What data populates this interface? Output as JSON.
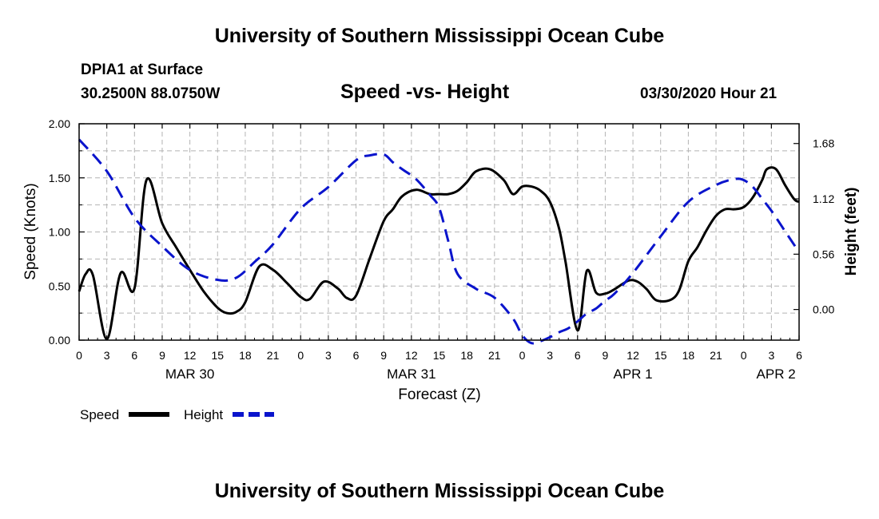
{
  "header": {
    "title": "University of Southern Mississippi Ocean Cube",
    "station": "DPIA1 at Surface",
    "location": "30.2500N 88.0750W",
    "plot_title": "Speed -vs- Height",
    "datetime": "03/30/2020 Hour 21"
  },
  "footer": {
    "title": "University of Southern Mississippi Ocean Cube"
  },
  "legend": {
    "speed_label": "Speed",
    "height_label": "Height"
  },
  "colors": {
    "speed": "#000000",
    "height": "#0a14cc",
    "grid": "#b4b4b4"
  },
  "chart_data": {
    "type": "line",
    "title": "Speed -vs- Height",
    "xlabel": "Forecast (Z)",
    "ylabel_left": "Speed (Knots)",
    "ylabel_right": "Height (feet)",
    "x_range_hours": [
      0,
      78
    ],
    "y_left_range": [
      0,
      2
    ],
    "y_right_range": [
      -0.31,
      1.88
    ],
    "y_left_ticks": [
      "0.00",
      "0.50",
      "1.00",
      "1.50",
      "2.00"
    ],
    "y_left_tick_values": [
      0,
      0.5,
      1.0,
      1.5,
      2.0
    ],
    "y_right_ticks": [
      "0.00",
      "0.56",
      "1.12",
      "1.68"
    ],
    "y_right_tick_values": [
      0,
      0.56,
      1.12,
      1.68
    ],
    "x_tick_labels": [
      "0",
      "3",
      "6",
      "9",
      "12",
      "15",
      "18",
      "21",
      "0",
      "3",
      "6",
      "9",
      "12",
      "15",
      "18",
      "21",
      "0",
      "3",
      "6",
      "9",
      "12",
      "15",
      "18",
      "21",
      "0",
      "3",
      "6"
    ],
    "x_tick_hours": [
      0,
      3,
      6,
      9,
      12,
      15,
      18,
      21,
      24,
      27,
      30,
      33,
      36,
      39,
      42,
      45,
      48,
      51,
      54,
      57,
      60,
      63,
      66,
      69,
      72,
      75,
      78
    ],
    "date_labels": [
      {
        "label": "MAR 30",
        "hour": 12
      },
      {
        "label": "MAR 31",
        "hour": 36
      },
      {
        "label": "APR 1",
        "hour": 60
      },
      {
        "label": "APR 2",
        "hour": 75.5
      }
    ],
    "series": [
      {
        "name": "Speed",
        "axis": "left",
        "style": "solid",
        "x": [
          0,
          0.7,
          1.5,
          3,
          4.5,
          6,
          7.3,
          9,
          10.5,
          12,
          13.5,
          15,
          16,
          17,
          18,
          19.5,
          21,
          22.5,
          24,
          25,
          26.5,
          28,
          29,
          30,
          31.5,
          33,
          34,
          35,
          36.5,
          38,
          39,
          40,
          41,
          42,
          43,
          44.5,
          46,
          47,
          48,
          49,
          50,
          51,
          52,
          52.7,
          54,
          55,
          56,
          57,
          58,
          59.5,
          60.5,
          61.5,
          62.5,
          64,
          65,
          66,
          67,
          68,
          69,
          70,
          71,
          72,
          73,
          74,
          74.5,
          75.5,
          76.5,
          77.5,
          78
        ],
        "values": [
          0.45,
          0.61,
          0.6,
          0.01,
          0.62,
          0.48,
          1.48,
          1.08,
          0.86,
          0.65,
          0.45,
          0.3,
          0.25,
          0.26,
          0.35,
          0.68,
          0.65,
          0.53,
          0.4,
          0.38,
          0.54,
          0.48,
          0.39,
          0.41,
          0.76,
          1.1,
          1.21,
          1.33,
          1.39,
          1.35,
          1.35,
          1.35,
          1.38,
          1.46,
          1.56,
          1.58,
          1.48,
          1.35,
          1.42,
          1.42,
          1.38,
          1.28,
          1.03,
          0.72,
          0.09,
          0.64,
          0.44,
          0.43,
          0.47,
          0.55,
          0.54,
          0.47,
          0.37,
          0.37,
          0.46,
          0.73,
          0.86,
          1.02,
          1.15,
          1.21,
          1.21,
          1.23,
          1.32,
          1.48,
          1.58,
          1.58,
          1.43,
          1.3,
          1.28
        ]
      },
      {
        "name": "Height",
        "axis": "right",
        "style": "dashed",
        "x": [
          0,
          3,
          6,
          9,
          12,
          15,
          17,
          19,
          21,
          24,
          27,
          30,
          31.5,
          33,
          34,
          35,
          36.5,
          38,
          39,
          40,
          41,
          43,
          45,
          47,
          48,
          49,
          50,
          51,
          52,
          53,
          54,
          55,
          56,
          57,
          58,
          60,
          63,
          66,
          69,
          71,
          72,
          73,
          74,
          75,
          76,
          77,
          78
        ],
        "values": [
          1.72,
          1.4,
          0.93,
          0.64,
          0.4,
          0.3,
          0.32,
          0.48,
          0.66,
          1.02,
          1.24,
          1.51,
          1.56,
          1.57,
          1.49,
          1.42,
          1.32,
          1.16,
          1.03,
          0.69,
          0.36,
          0.21,
          0.12,
          -0.09,
          -0.26,
          -0.34,
          -0.32,
          -0.28,
          -0.23,
          -0.19,
          -0.12,
          -0.04,
          0.01,
          0.09,
          0.16,
          0.37,
          0.74,
          1.09,
          1.26,
          1.32,
          1.31,
          1.24,
          1.12,
          1.0,
          0.86,
          0.72,
          0.58
        ]
      }
    ]
  }
}
